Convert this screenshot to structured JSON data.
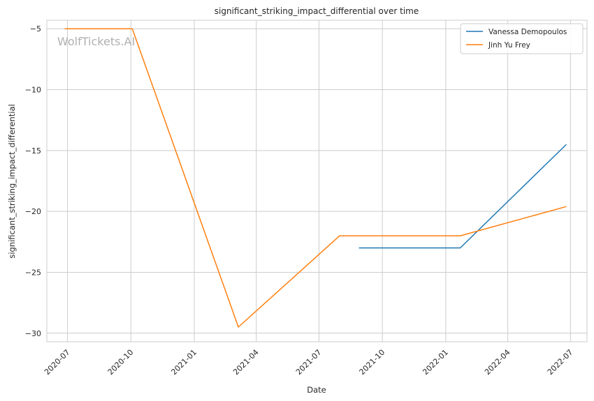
{
  "chart_data": {
    "type": "line",
    "title": "significant_striking_impact_differential over time",
    "xlabel": "Date",
    "ylabel": "significant_striking_impact_differential",
    "watermark": "WolfTickets.AI",
    "x_ticks": [
      "2020-07",
      "2020-10",
      "2021-01",
      "2021-04",
      "2021-07",
      "2021-10",
      "2022-01",
      "2022-04",
      "2022-07"
    ],
    "y_ticks": [
      -5,
      -10,
      -15,
      -20,
      -25,
      -30
    ],
    "y_tick_labels": [
      "−5",
      "−10",
      "−15",
      "−20",
      "−25",
      "−30"
    ],
    "xlim": [
      "2020-06-01",
      "2022-07-25"
    ],
    "ylim": [
      -30.7,
      -4.3
    ],
    "grid": true,
    "legend_position": "top-right",
    "series": [
      {
        "name": "Vanessa Demopoulos",
        "color": "#1f77b4",
        "points": [
          {
            "x": "2021-08-28",
            "y": -23.0
          },
          {
            "x": "2022-01-22",
            "y": -23.0
          },
          {
            "x": "2022-06-25",
            "y": -14.5
          }
        ]
      },
      {
        "name": "Jinh Yu Frey",
        "color": "#ff7f0e",
        "points": [
          {
            "x": "2020-06-27",
            "y": -5.0
          },
          {
            "x": "2020-10-03",
            "y": -5.0
          },
          {
            "x": "2021-03-06",
            "y": -29.5
          },
          {
            "x": "2021-07-31",
            "y": -22.0
          },
          {
            "x": "2022-01-22",
            "y": -22.0
          },
          {
            "x": "2022-06-25",
            "y": -19.6
          }
        ]
      }
    ]
  }
}
